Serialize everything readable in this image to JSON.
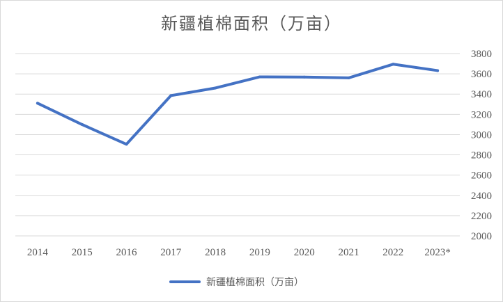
{
  "chart_data": {
    "type": "line",
    "title": "新疆植棉面积（万亩）",
    "categories": [
      "2014",
      "2015",
      "2016",
      "2017",
      "2018",
      "2019",
      "2020",
      "2021",
      "2022",
      "2023*"
    ],
    "series": [
      {
        "name": "新疆植棉面积（万亩）",
        "values": [
          3310,
          3100,
          2905,
          3385,
          3460,
          3570,
          3568,
          3560,
          3695,
          3632
        ],
        "color": "#4472c4"
      }
    ],
    "ylim": [
      2000,
      3800
    ],
    "yticks": [
      "2000",
      "2200",
      "2400",
      "2600",
      "2800",
      "3000",
      "3200",
      "3400",
      "3600",
      "3800"
    ],
    "y_axis_side": "right",
    "grid": true,
    "legend_position": "bottom"
  }
}
